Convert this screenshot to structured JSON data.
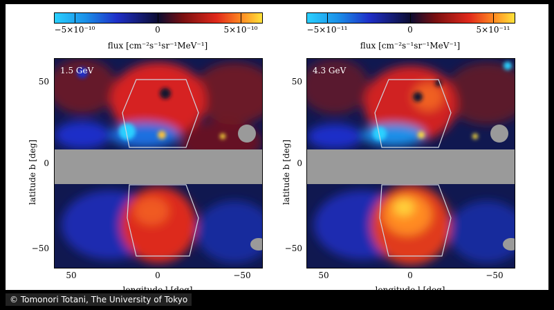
{
  "credit": "© Tomonori Totani, The University of Tokyo",
  "colors": {
    "cyan": "#2ad0ff",
    "blue": "#1e2fc8",
    "dark": "#0c0c30",
    "red": "#e0281a",
    "yellow": "#ffe23a",
    "mask": "#9a9a9a"
  },
  "panels": [
    {
      "energy": "1.5 GeV",
      "colorbar": {
        "ticks": [
          "−5×10⁻¹⁰",
          "0",
          "5×10⁻¹⁰"
        ],
        "title": "flux [cm⁻²s⁻¹sr⁻¹MeV⁻¹]"
      },
      "axes": {
        "ylabel": "latitude b [deg]",
        "xlabel": "longitude l [deg]",
        "yticks": [
          "50",
          "0",
          "−50"
        ],
        "xticks": [
          "50",
          "0",
          "−50"
        ]
      }
    },
    {
      "energy": "4.3 GeV",
      "colorbar": {
        "ticks": [
          "−5×10⁻¹¹",
          "0",
          "5×10⁻¹¹"
        ],
        "title": "flux [cm⁻²s⁻¹sr⁻¹MeV⁻¹]"
      },
      "axes": {
        "ylabel": "latitude b [deg]",
        "xlabel": "longitude l [deg]",
        "yticks": [
          "50",
          "0",
          "−50"
        ],
        "xticks": [
          "50",
          "0",
          "−50"
        ]
      }
    }
  ]
}
